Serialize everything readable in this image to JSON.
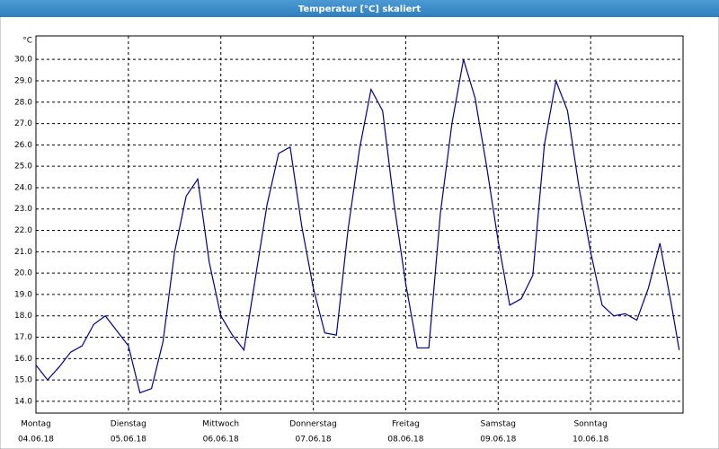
{
  "chart_data": {
    "type": "line",
    "title": "Temperatur [°C] skaliert",
    "y_unit": "°C",
    "x": [
      0,
      3,
      6,
      9,
      12,
      15,
      18,
      21,
      24,
      27,
      30,
      33,
      36,
      39,
      42,
      45,
      48,
      51,
      54,
      57,
      60,
      63,
      66,
      69,
      72,
      75,
      78,
      81,
      84,
      87,
      90,
      93,
      96,
      99,
      102,
      105,
      108,
      111,
      114,
      117,
      120,
      123,
      126,
      129,
      132,
      135,
      138,
      141,
      144,
      147,
      150,
      153,
      156,
      159,
      162,
      165,
      167
    ],
    "series": [
      {
        "name": "Temperatur",
        "color": "#00008b",
        "values": [
          15.7,
          15.0,
          15.6,
          16.3,
          16.6,
          17.6,
          18.0,
          17.3,
          16.6,
          14.4,
          14.6,
          16.8,
          21.0,
          23.6,
          24.4,
          20.5,
          18.0,
          17.1,
          16.4,
          19.8,
          23.2,
          25.6,
          25.9,
          22.2,
          19.3,
          17.2,
          17.1,
          22.0,
          25.8,
          28.6,
          27.6,
          23.2,
          19.5,
          16.5,
          16.5,
          22.8,
          27.0,
          30.0,
          28.2,
          25.0,
          21.5,
          18.5,
          18.8,
          19.9,
          26.0,
          29.0,
          27.6,
          24.0,
          21.0,
          18.5,
          18.0,
          18.1,
          17.8,
          19.3,
          21.4,
          18.5,
          16.4
        ]
      }
    ],
    "xlim": [
      0,
      168
    ],
    "xticks": [
      {
        "value": 0,
        "label": "Montag",
        "date": "04.06.18"
      },
      {
        "value": 24,
        "label": "Dienstag",
        "date": "05.06.18"
      },
      {
        "value": 48,
        "label": "Mittwoch",
        "date": "06.06.18"
      },
      {
        "value": 72,
        "label": "Donnerstag",
        "date": "07.06.18"
      },
      {
        "value": 96,
        "label": "Freitag",
        "date": "08.06.18"
      },
      {
        "value": 120,
        "label": "Samstag",
        "date": "09.06.18"
      },
      {
        "value": 144,
        "label": "Sonntag",
        "date": "10.06.18"
      }
    ],
    "ylim": [
      13.45,
      31.1
    ],
    "yticks": [
      {
        "value": 14,
        "label": "14.0"
      },
      {
        "value": 15,
        "label": "15.0"
      },
      {
        "value": 16,
        "label": "16.0"
      },
      {
        "value": 17,
        "label": "17.0"
      },
      {
        "value": 18,
        "label": "18.0"
      },
      {
        "value": 19,
        "label": "19.0"
      },
      {
        "value": 20,
        "label": "20.0"
      },
      {
        "value": 21,
        "label": "21.0"
      },
      {
        "value": 22,
        "label": "22.0"
      },
      {
        "value": 23,
        "label": "23.0"
      },
      {
        "value": 24,
        "label": "24.0"
      },
      {
        "value": 25,
        "label": "25.0"
      },
      {
        "value": 26,
        "label": "26.0"
      },
      {
        "value": 27,
        "label": "27.0"
      },
      {
        "value": 28,
        "label": "28.0"
      },
      {
        "value": 29,
        "label": "29.0"
      },
      {
        "value": 30,
        "label": "30.0"
      }
    ],
    "grid": true
  }
}
